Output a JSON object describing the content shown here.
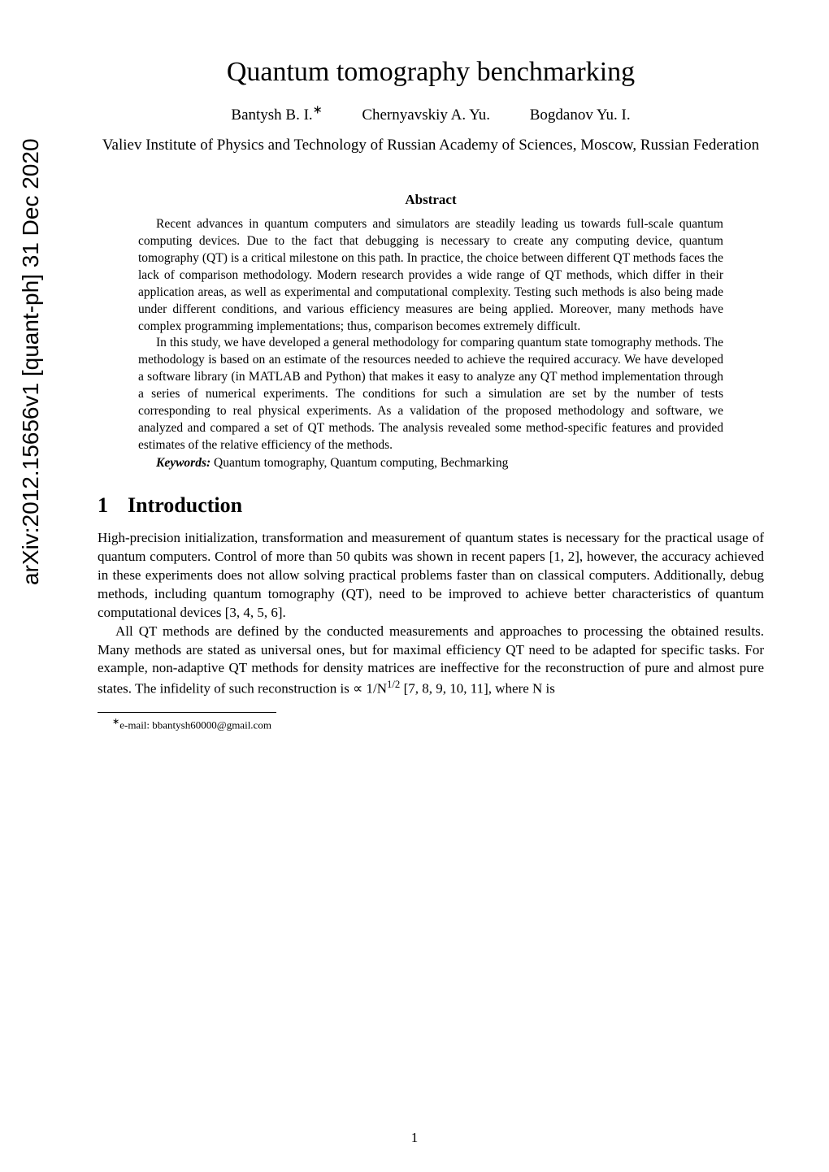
{
  "arxiv": {
    "identifier": "arXiv:2012.15656v1 [quant-ph] 31 Dec 2020"
  },
  "title": "Quantum tomography benchmarking",
  "authors": {
    "a1": "Bantysh B. I.",
    "a1_mark": "∗",
    "a2": "Chernyavskiy A. Yu.",
    "a3": "Bogdanov Yu. I."
  },
  "affiliation": "Valiev Institute of Physics and Technology of Russian Academy of Sciences, Moscow, Russian Federation",
  "abstract": {
    "heading": "Abstract",
    "p1": "Recent advances in quantum computers and simulators are steadily leading us towards full-scale quantum computing devices. Due to the fact that debugging is necessary to create any computing device, quantum tomography (QT) is a critical milestone on this path. In practice, the choice between different QT methods faces the lack of comparison methodology. Modern research provides a wide range of QT methods, which differ in their application areas, as well as experimental and computational complexity. Testing such methods is also being made under different conditions, and various efficiency measures are being applied. Moreover, many methods have complex programming implementations; thus, comparison becomes extremely difficult.",
    "p2": "In this study, we have developed a general methodology for comparing quantum state tomography methods. The methodology is based on an estimate of the resources needed to achieve the required accuracy. We have developed a software library (in MATLAB and Python) that makes it easy to analyze any QT method implementation through a series of numerical experiments. The conditions for such a simulation are set by the number of tests corresponding to real physical experiments. As a validation of the proposed methodology and software, we analyzed and compared a set of QT methods. The analysis revealed some method-specific features and provided estimates of the relative efficiency of the methods."
  },
  "keywords": {
    "label": "Keywords:",
    "text": " Quantum tomography, Quantum computing, Bechmarking"
  },
  "section1": {
    "number": "1",
    "title": "Introduction",
    "p1": "High-precision initialization, transformation and measurement of quantum states is necessary for the practical usage of quantum computers. Control of more than 50 qubits was shown in recent papers [1, 2], however, the accuracy achieved in these experiments does not allow solving practical problems faster than on classical computers. Additionally, debug methods, including quantum tomography (QT), need to be improved to achieve better characteristics of quantum computational devices [3, 4, 5, 6].",
    "p2_a": "All QT methods are defined by the conducted measurements and approaches to processing the obtained results. Many methods are stated as universal ones, but for maximal efficiency QT need to be adapted for specific tasks. For example, non-adaptive QT methods for density matrices are ineffective for the reconstruction of pure and almost pure states. The infidelity of such reconstruction is ∝ 1/N",
    "p2_exp": "1/2",
    "p2_b": " [7, 8, 9, 10, 11], where N is"
  },
  "footnote": {
    "mark": "∗",
    "text": "e-mail: bbantysh60000@gmail.com"
  },
  "page_number": "1",
  "style": {
    "background_color": "#ffffff",
    "text_color": "#000000",
    "title_fontsize": 34,
    "author_fontsize": 19,
    "abstract_fontsize": 15.5,
    "body_fontsize": 17,
    "section_fontsize": 26,
    "footnote_fontsize": 13,
    "arxiv_fontsize": 28
  }
}
